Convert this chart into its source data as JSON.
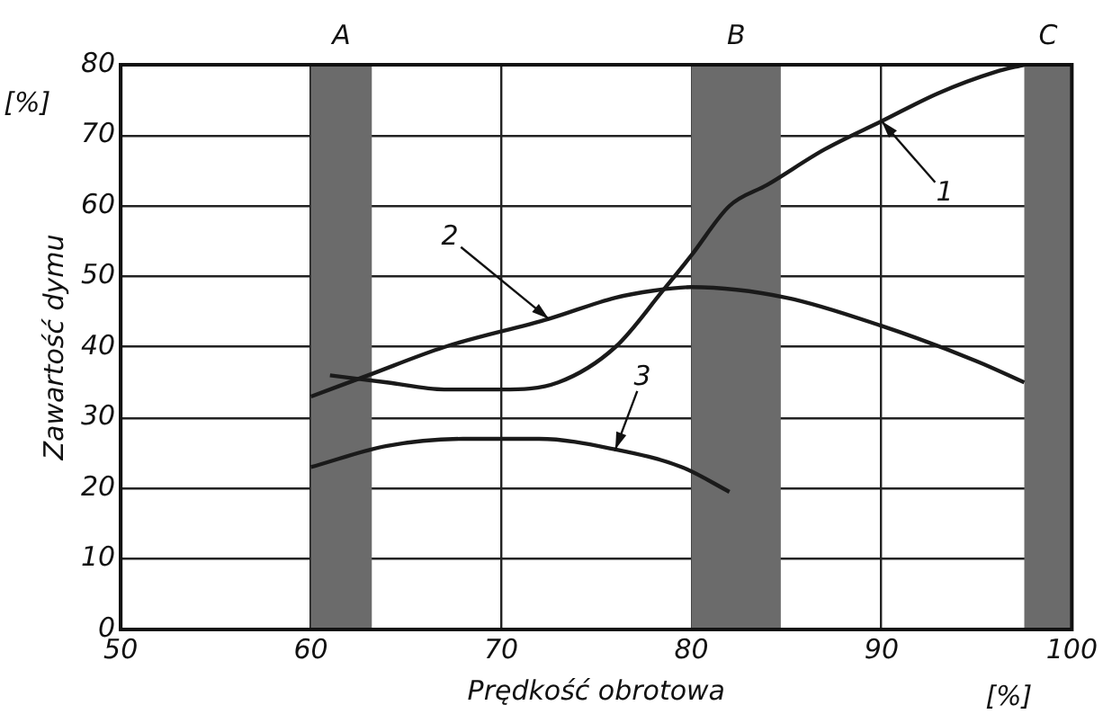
{
  "chart_data": {
    "type": "line",
    "xlabel": "Prędkość obrotowa",
    "ylabel": "Zawartość dymu",
    "annotations": [
      "[%]",
      "[%]"
    ],
    "xlim": [
      50,
      100
    ],
    "xticks": [
      50,
      60,
      70,
      80,
      90,
      100
    ],
    "ylim": [
      0,
      80
    ],
    "yticks": [
      0,
      10,
      20,
      30,
      40,
      50,
      60,
      70,
      80
    ],
    "grid": true,
    "legend": false,
    "marker": "none",
    "line_style": "solid",
    "bands": [
      {
        "axis": "x",
        "from": 60,
        "to": 63.2,
        "label": "A",
        "color": "#6b6b6b"
      },
      {
        "axis": "x",
        "from": 80,
        "to": 84.7,
        "label": "B",
        "color": "#6b6b6b"
      },
      {
        "axis": "x",
        "from": 97.5,
        "to": 100,
        "label": "C",
        "color": "#6b6b6b"
      }
    ],
    "series": [
      {
        "name": "1",
        "color": "#1a1a1a",
        "x": [
          61,
          64,
          67,
          70,
          73,
          76,
          78.5,
          80,
          82,
          84,
          87,
          90,
          93,
          96,
          97.5
        ],
        "values": [
          36,
          35,
          34,
          34,
          35,
          40,
          48,
          53,
          60,
          63,
          68,
          72,
          76,
          79,
          80
        ]
      },
      {
        "name": "2",
        "color": "#1a1a1a",
        "x": [
          60,
          63,
          67,
          72.5,
          76,
          78,
          80,
          85,
          90,
          95,
          97.5
        ],
        "values": [
          33,
          36,
          40,
          44,
          47,
          48,
          48.5,
          47,
          43,
          38,
          35
        ]
      },
      {
        "name": "3",
        "color": "#1a1a1a",
        "x": [
          60,
          64,
          68,
          72,
          76,
          79.5,
          82
        ],
        "values": [
          23,
          26,
          27,
          27,
          25.5,
          23,
          19.5
        ]
      }
    ]
  }
}
